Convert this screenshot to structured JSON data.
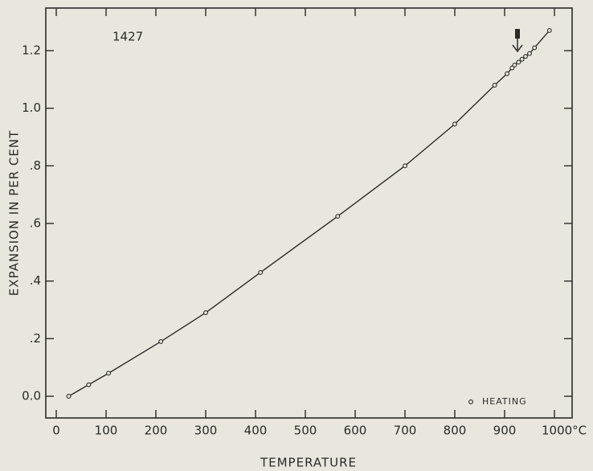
{
  "chart_data": {
    "type": "line",
    "annotation": "1427",
    "x_label": "TEMPERATURE",
    "y_label": "EXPANSION IN PER CENT",
    "xlim": [
      0,
      1000
    ],
    "xticks": [
      0,
      100,
      200,
      300,
      400,
      500,
      600,
      700,
      800,
      900,
      {
        "value": 1000,
        "label": "1000°C"
      }
    ],
    "ylim": [
      0,
      1.2
    ],
    "yticks": [
      {
        "value": 0,
        "label": "0.0"
      },
      {
        "value": 0.2,
        "label": ".2"
      },
      {
        "value": 0.4,
        "label": ".4"
      },
      {
        "value": 0.6,
        "label": ".6"
      },
      {
        "value": 0.8,
        "label": ".8"
      },
      {
        "value": 1.0,
        "label": "1.0"
      },
      {
        "value": 1.2,
        "label": "1.2"
      }
    ],
    "x": [
      25,
      65,
      105,
      210,
      300,
      410,
      565,
      700,
      800,
      880,
      905,
      915,
      920,
      928,
      935,
      942,
      950,
      960,
      990
    ],
    "series": [
      {
        "name": "HEATING",
        "color": "#2a2a2a",
        "values": [
          0,
          0.04,
          0.08,
          0.19,
          0.29,
          0.43,
          0.625,
          0.8,
          0.945,
          1.08,
          1.12,
          1.14,
          1.15,
          1.16,
          1.17,
          1.18,
          1.19,
          1.21,
          1.27
        ]
      }
    ]
  }
}
